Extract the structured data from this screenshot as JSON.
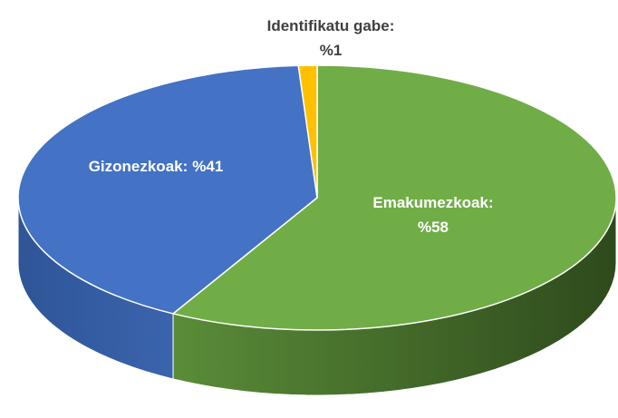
{
  "chart_data": {
    "type": "pie",
    "categories": [
      "Emakumezkoak:",
      "Gizonezkoak:",
      "Identifikatu gabe:"
    ],
    "values": [
      58,
      41,
      1
    ],
    "value_labels": [
      "%58",
      "%41",
      "%1"
    ],
    "colors": [
      "#70ad47",
      "#4472c4",
      "#ffc000"
    ]
  }
}
